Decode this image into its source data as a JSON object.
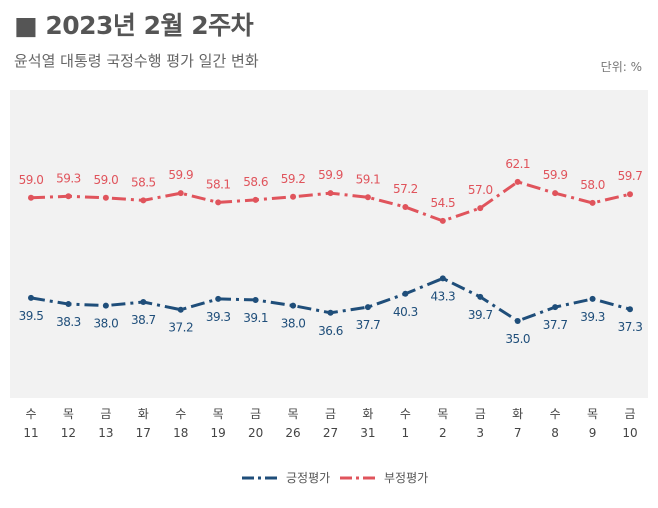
{
  "header": {
    "title": "■ 2023년 2월 2주차",
    "subtitle": "윤석열 대통령 국정수행 평가 일간 변화",
    "unit": "단위: %"
  },
  "chart_data": {
    "type": "line",
    "title": "2023년 2월 2주차",
    "categories": [
      [
        "수",
        "11"
      ],
      [
        "목",
        "12"
      ],
      [
        "금",
        "13"
      ],
      [
        "화",
        "17"
      ],
      [
        "수",
        "18"
      ],
      [
        "목",
        "19"
      ],
      [
        "금",
        "20"
      ],
      [
        "목",
        "26"
      ],
      [
        "금",
        "27"
      ],
      [
        "화",
        "31"
      ],
      [
        "수",
        "1"
      ],
      [
        "목",
        "2"
      ],
      [
        "금",
        "3"
      ],
      [
        "화",
        "7"
      ],
      [
        "수",
        "8"
      ],
      [
        "목",
        "9"
      ],
      [
        "금",
        "10"
      ]
    ],
    "ylim": [
      20,
      80
    ],
    "grid": false,
    "legend": "bottom",
    "series": [
      {
        "name": "긍정평가",
        "color": "#1f4e7a",
        "values": [
          39.5,
          38.3,
          38.0,
          38.7,
          37.2,
          39.3,
          39.1,
          38.0,
          36.6,
          37.7,
          40.3,
          43.3,
          39.7,
          35.0,
          37.7,
          39.3,
          37.3
        ]
      },
      {
        "name": "부정평가",
        "color": "#e0545c",
        "values": [
          59.0,
          59.3,
          59.0,
          58.5,
          59.9,
          58.1,
          58.6,
          59.2,
          59.9,
          59.1,
          57.2,
          54.5,
          57.0,
          62.1,
          59.9,
          58.0,
          59.7
        ]
      }
    ]
  }
}
